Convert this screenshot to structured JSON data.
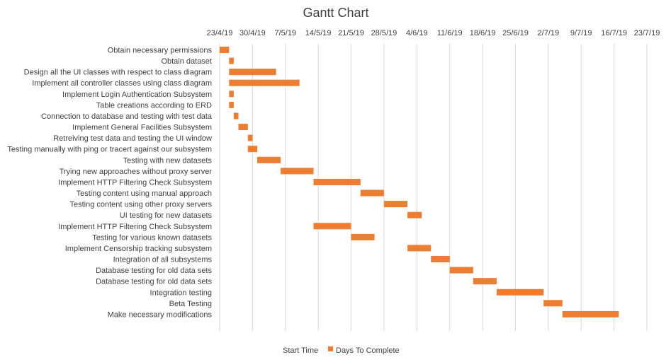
{
  "chart_data": {
    "type": "bar",
    "orientation": "horizontal",
    "stacked": true,
    "title": "Gantt Chart",
    "x_ticks": [
      "23/4/19",
      "30/4/19",
      "7/5/19",
      "14/5/19",
      "21/5/19",
      "28/5/19",
      "4/6/19",
      "11/6/19",
      "18/6/19",
      "25/6/19",
      "2/7/19",
      "9/7/19",
      "16/7/19",
      "23/7/19"
    ],
    "xlim": [
      "2019-04-23",
      "2019-07-23"
    ],
    "grid": true,
    "legend_position": "bottom",
    "series": [
      {
        "name": "Start Time",
        "color": "none"
      },
      {
        "name": "Days To Complete",
        "color": "#ED7D31"
      }
    ],
    "tasks": [
      {
        "name": "Obtain necessary permissions",
        "start": "2019-04-23",
        "days": 2
      },
      {
        "name": "Obtain dataset",
        "start": "2019-04-25",
        "days": 1
      },
      {
        "name": "Design all the UI classes with respect to class diagram",
        "start": "2019-04-25",
        "days": 10
      },
      {
        "name": "Implement all controller classes using class diagram",
        "start": "2019-04-25",
        "days": 15
      },
      {
        "name": "Implement Login Authentication Subsystem",
        "start": "2019-04-25",
        "days": 1
      },
      {
        "name": "Table creations according to ERD",
        "start": "2019-04-25",
        "days": 1
      },
      {
        "name": "Connection to database and testing with test data",
        "start": "2019-04-26",
        "days": 1
      },
      {
        "name": "Implement General Facilities Subsystem",
        "start": "2019-04-27",
        "days": 2
      },
      {
        "name": "Retreiving test data and testing the UI window",
        "start": "2019-04-29",
        "days": 1
      },
      {
        "name": "Testing manually with ping or tracert against our subsystem",
        "start": "2019-04-29",
        "days": 2
      },
      {
        "name": "Testing with new datasets",
        "start": "2019-05-01",
        "days": 5
      },
      {
        "name": "Trying new approaches without proxy server",
        "start": "2019-05-06",
        "days": 7
      },
      {
        "name": "Implement HTTP Filtering Check Subsystem",
        "start": "2019-05-13",
        "days": 10
      },
      {
        "name": "Testing content using manual approach",
        "start": "2019-05-23",
        "days": 5
      },
      {
        "name": "Testing content using other proxy servers",
        "start": "2019-05-28",
        "days": 5
      },
      {
        "name": "UI testing for new datasets",
        "start": "2019-06-02",
        "days": 3
      },
      {
        "name": "Implement HTTP Filtering Check Subsystem",
        "start": "2019-05-13",
        "days": 8
      },
      {
        "name": "Testing for various known datasets",
        "start": "2019-05-21",
        "days": 5
      },
      {
        "name": "Implement Censorship tracking subsystem",
        "start": "2019-06-02",
        "days": 5
      },
      {
        "name": "Integration of all subsystems",
        "start": "2019-06-07",
        "days": 4
      },
      {
        "name": "Database testing for old data sets",
        "start": "2019-06-11",
        "days": 5
      },
      {
        "name": "Database testing for old data sets",
        "start": "2019-06-16",
        "days": 5
      },
      {
        "name": "Integration testing",
        "start": "2019-06-21",
        "days": 10
      },
      {
        "name": "Beta Testing",
        "start": "2019-07-01",
        "days": 4
      },
      {
        "name": "Make necessary modifications",
        "start": "2019-07-05",
        "days": 12
      }
    ]
  }
}
